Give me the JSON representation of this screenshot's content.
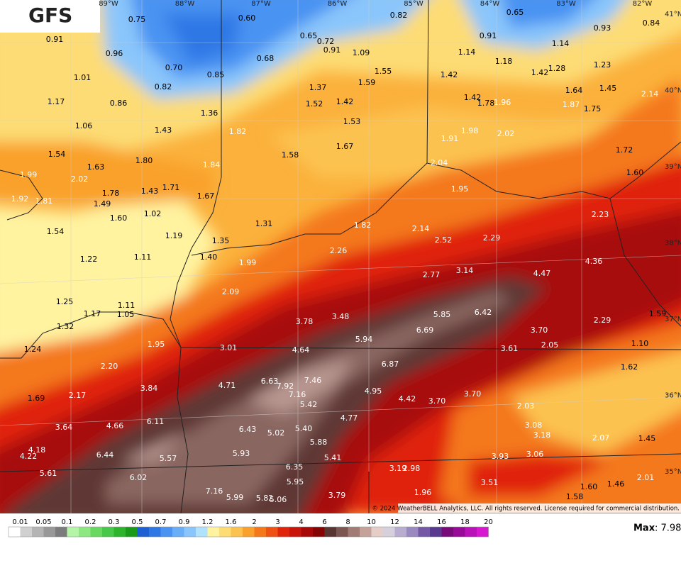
{
  "header": {
    "title": "GFS"
  },
  "map": {
    "lon_labels": [
      "89°W",
      "88°W",
      "87°W",
      "86°W",
      "85°W",
      "84°W",
      "83°W",
      "82°W"
    ],
    "lat_labels": [
      "41°N",
      "40°N",
      "39°N",
      "38°N",
      "37°N",
      "36°N",
      "35°N"
    ],
    "point_labels": [
      "0.75",
      "0.60",
      "0.82",
      "0.65",
      "0.93",
      "0.84",
      "0.91",
      "0.65",
      "0.72",
      "0.91",
      "1.14",
      "0.96",
      "0.68",
      "0.91",
      "1.09",
      "1.14",
      "1.18",
      "1.23",
      "0.70",
      "1.55",
      "1.42",
      "1.28",
      "1.01",
      "0.85",
      "1.42",
      "0.82",
      "1.37",
      "1.59",
      "1.64",
      "1.45",
      "2.14",
      "1.17",
      "0.86",
      "1.52",
      "1.42",
      "1.42",
      "1.78",
      "1.96",
      "1.87",
      "1.75",
      "1.36",
      "1.53",
      "1.06",
      "1.43",
      "1.82",
      "1.98",
      "2.02",
      "1.91",
      "1.80",
      "1.58",
      "1.67",
      "1.72",
      "1.54",
      "1.63",
      "1.84",
      "2.04",
      "1.99",
      "2.02",
      "1.60",
      "1.78",
      "1.43",
      "1.71",
      "1.67",
      "1.95",
      "1.92",
      "1.81",
      "1.49",
      "1.02",
      "2.23",
      "1.60",
      "1.31",
      "1.82",
      "2.14",
      "1.54",
      "1.19",
      "2.52",
      "2.29",
      "1.35",
      "4.36",
      "2.26",
      "1.40",
      "1.22",
      "1.11",
      "1.99",
      "3.14",
      "2.77",
      "4.47",
      "2.09",
      "1.25",
      "1.11",
      "1.05",
      "1.17",
      "5.85",
      "6.42",
      "1.59",
      "3.78",
      "3.48",
      "2.29",
      "1.32",
      "6.69",
      "3.70",
      "5.94",
      "1.10",
      "1.95",
      "3.01",
      "4.64",
      "3.61",
      "2.05",
      "1.24",
      "2.20",
      "6.87",
      "1.62",
      "6.63",
      "7.92",
      "7.46",
      "4.71",
      "3.84",
      "4.95",
      "3.70",
      "2.17",
      "7.16",
      "1.69",
      "4.42",
      "3.70",
      "5.42",
      "2.03",
      "4.77",
      "6.11",
      "4.66",
      "3.64",
      "3.08",
      "6.43",
      "5.02",
      "5.40",
      "3.18",
      "2.07",
      "1.45",
      "5.88",
      "4.18",
      "4.22",
      "6.44",
      "5.93",
      "3.06",
      "3.93",
      "5.57",
      "5.41",
      "6.35",
      "3.19",
      "2.98",
      "5.61",
      "6.02",
      "2.01",
      "5.95",
      "3.51",
      "1.46",
      "1.60",
      "7.16",
      "1.96",
      "5.99",
      "5.82",
      "5.06",
      "3.79",
      "1.58"
    ],
    "copyright": "© 2024 WeatherBELL Analytics, LLC. All rights reserved. License required for commercial distribution."
  },
  "legend": {
    "ticks": [
      "0.01",
      "0.05",
      "0.1",
      "0.2",
      "0.3",
      "0.5",
      "0.7",
      "0.9",
      "1.2",
      "1.6",
      "2",
      "3",
      "4",
      "6",
      "8",
      "10",
      "12",
      "14",
      "16",
      "18",
      "20"
    ],
    "colors": [
      "#ffffff",
      "#d0d0d0",
      "#b4b4b4",
      "#989898",
      "#7c7c7c",
      "#b4f5a8",
      "#8de882",
      "#68d860",
      "#48c848",
      "#2db42d",
      "#199a19",
      "#1f5fd4",
      "#2e78e6",
      "#4a93f2",
      "#69aef7",
      "#8ac6fb",
      "#b0e2fd",
      "#fff3a0",
      "#fddc74",
      "#fcc250",
      "#f9a12c",
      "#f4781a",
      "#ef5014",
      "#e0240c",
      "#c8140a",
      "#a80808",
      "#860404",
      "#5a3632",
      "#7c5650",
      "#a07c74",
      "#c4a29a",
      "#e6cec8",
      "#d6d0dc",
      "#b8acd0",
      "#9a88c0",
      "#7458a6",
      "#5a3a90",
      "#7a0a7a",
      "#980a98",
      "#b812b8",
      "#d818d0"
    ]
  },
  "max": {
    "label": "Max",
    "value": ": 7.98"
  }
}
